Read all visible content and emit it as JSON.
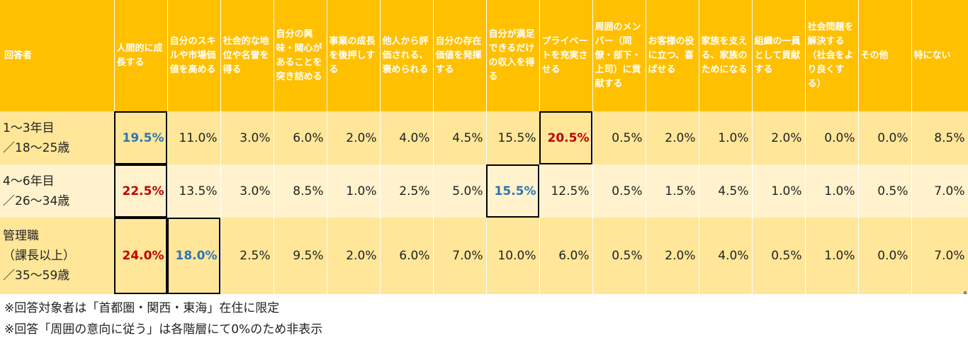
{
  "chart_data": {
    "type": "table",
    "row_header_label": "回答者",
    "columns": [
      "人間的に成長する",
      "自分のスキルや市場価値を高める",
      "社会的な地位や名誉を得る",
      "自分の興味・関心があることを突き詰める",
      "事業の成長を後押しする",
      "他人から評価される、褒められる",
      "自分の存在価値を発揮する",
      "自分が満足できるだけの収入を得る",
      "プライベートを充実させる",
      "周囲のメンバー（同僚・部下・上司）に貢献する",
      "お客様の役に立つ、喜ばせる",
      "家族を支える、家族のためになる",
      "組織の一員として貢献する",
      "社会問題を解決する（社会をより良くする）",
      "その他",
      "特にない"
    ],
    "rows": [
      {
        "label_lines": [
          "1～3年目",
          "／18～25歳"
        ],
        "values": [
          "19.5%",
          "11.0%",
          "3.0%",
          "6.0%",
          "2.0%",
          "4.0%",
          "4.5%",
          "15.5%",
          "20.5%",
          "0.5%",
          "2.0%",
          "1.0%",
          "2.0%",
          "0.0%",
          "0.0%",
          "8.5%"
        ],
        "highlights": {
          "0": "blue",
          "8": "red"
        }
      },
      {
        "label_lines": [
          "4～6年目",
          "／26～34歳"
        ],
        "values": [
          "22.5%",
          "13.5%",
          "3.0%",
          "8.5%",
          "1.0%",
          "2.5%",
          "5.0%",
          "15.5%",
          "12.5%",
          "0.5%",
          "1.5%",
          "4.5%",
          "1.0%",
          "1.0%",
          "0.5%",
          "7.0%"
        ],
        "highlights": {
          "0": "red",
          "7": "blue"
        }
      },
      {
        "label_lines": [
          "管理職",
          "（課長以上）",
          "／35～59歳"
        ],
        "values": [
          "24.0%",
          "18.0%",
          "2.5%",
          "9.5%",
          "2.0%",
          "6.0%",
          "7.0%",
          "10.0%",
          "6.0%",
          "0.5%",
          "2.0%",
          "4.0%",
          "0.5%",
          "1.0%",
          "0.0%",
          "7.0%"
        ],
        "highlights": {
          "0": "red",
          "1": "blue"
        }
      }
    ]
  },
  "notes": [
    "※回答対象者は「首都圏・関西・東海」在住に限定",
    "※回答「周囲の意向に従う」は各階層にて0%のため非表示"
  ],
  "colors": {
    "header": "#FFC000",
    "row_dark": "#FFE699",
    "row_light": "#FFF2CC",
    "highlight_red": "#C00000",
    "highlight_blue": "#2E75B6"
  }
}
